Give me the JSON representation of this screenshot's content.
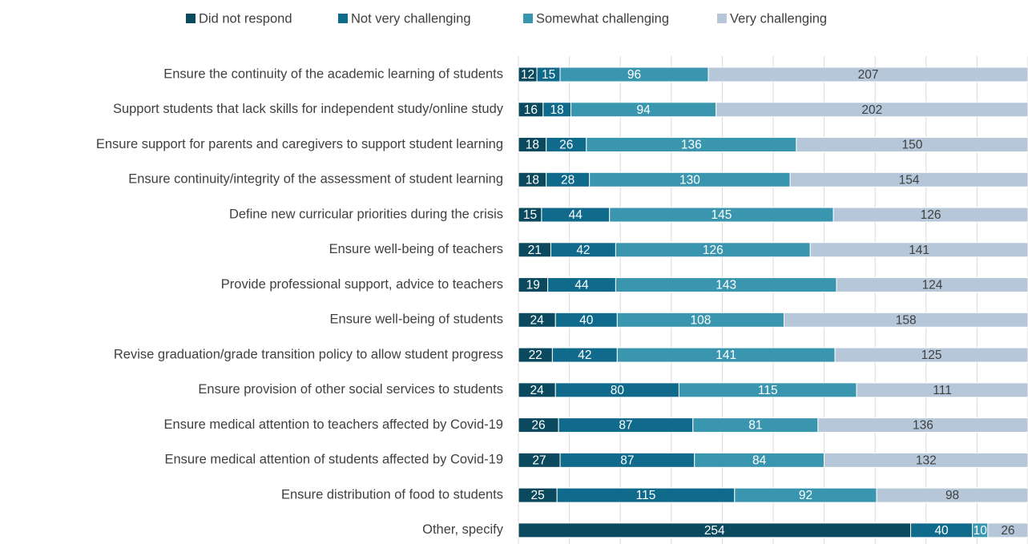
{
  "chart_data": {
    "type": "stacked_barh",
    "categories": [
      "Ensure the continuity of the academic learning of students",
      "Support students that lack skills for independent study/online study",
      "Ensure support for parents and caregivers to support student learning",
      "Ensure continuity/integrity of the assessment of student learning",
      "Define new curricular priorities during the crisis",
      "Ensure well-being of teachers",
      "Provide professional support, advice to teachers",
      "Ensure well-being of students",
      "Revise graduation/grade transition policy to allow student progress",
      "Ensure provision of other social services to students",
      "Ensure medical attention to teachers affected by Covid-19",
      "Ensure medical attention of students affected by Covid-19",
      "Ensure distribution of food to students",
      "Other, specify"
    ],
    "series": [
      {
        "name": "Did not respond",
        "color": "#0b4a5e",
        "label_color": "#ffffff",
        "values": [
          12,
          16,
          18,
          18,
          15,
          21,
          19,
          24,
          22,
          24,
          26,
          27,
          25,
          254
        ]
      },
      {
        "name": "Not very challenging",
        "color": "#0f6a8b",
        "label_color": "#ffffff",
        "values": [
          15,
          18,
          26,
          28,
          44,
          42,
          44,
          40,
          42,
          80,
          87,
          87,
          115,
          40
        ]
      },
      {
        "name": "Somewhat challenging",
        "color": "#3a96ae",
        "label_color": "#ffffff",
        "values": [
          96,
          94,
          136,
          130,
          145,
          126,
          143,
          108,
          141,
          115,
          81,
          84,
          92,
          10
        ]
      },
      {
        "name": "Very challenging",
        "color": "#b6c7d9",
        "label_color": "#404040",
        "values": [
          207,
          202,
          150,
          154,
          126,
          141,
          124,
          158,
          125,
          111,
          136,
          132,
          98,
          26
        ]
      }
    ],
    "xlim": [
      0,
      330
    ],
    "xticks": [
      0,
      33,
      66,
      99,
      132,
      165,
      198,
      231,
      264,
      297,
      330
    ],
    "grid": true,
    "legend": "top"
  }
}
